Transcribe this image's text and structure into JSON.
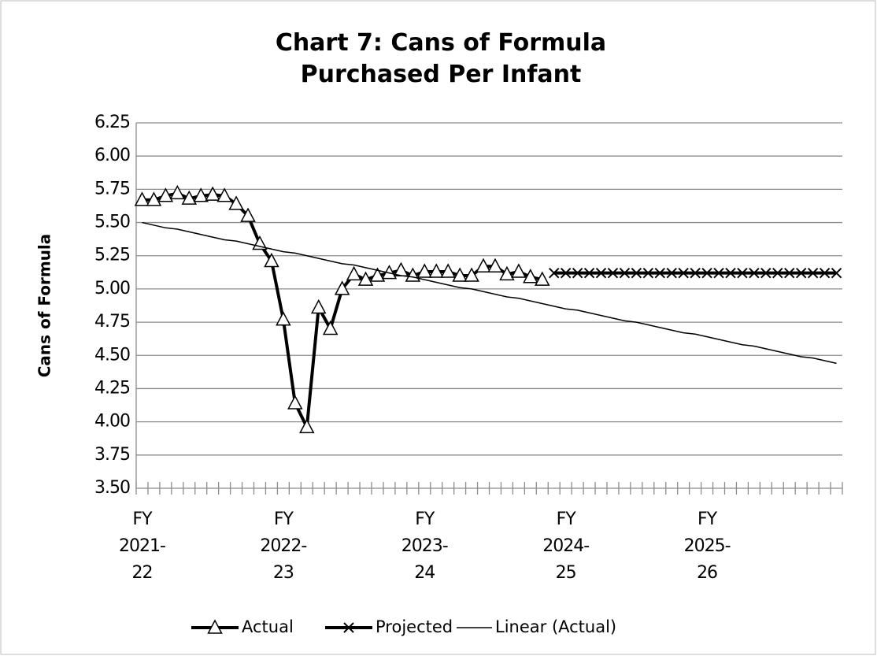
{
  "chart_data": {
    "type": "line",
    "title": "Chart 7: Cans of Formula Purchased Per Infant",
    "y_label": "Cans of Formula",
    "categories": [
      "FY 2021-22",
      null,
      null,
      null,
      null,
      null,
      null,
      null,
      null,
      null,
      null,
      null,
      "FY 2022-23",
      null,
      null,
      null,
      null,
      null,
      null,
      null,
      null,
      null,
      null,
      null,
      "FY 2023-24",
      null,
      null,
      null,
      null,
      null,
      null,
      null,
      null,
      null,
      null,
      null,
      "FY 2024-25",
      null,
      null,
      null,
      null,
      null,
      null,
      null,
      null,
      null,
      null,
      null,
      "FY 2025-26",
      null,
      null,
      null,
      null,
      null,
      null,
      null,
      null,
      null,
      null,
      null
    ],
    "series": [
      {
        "name": "Actual",
        "color": "#000000",
        "marker": "triangle",
        "line_width": 4,
        "values": [
          5.67,
          5.67,
          5.7,
          5.72,
          5.68,
          5.7,
          5.71,
          5.7,
          5.64,
          5.55,
          5.34,
          5.21,
          4.77,
          4.14,
          3.96,
          4.86,
          4.7,
          5.0,
          5.11,
          5.07,
          5.1,
          5.12,
          5.14,
          5.1,
          5.13,
          5.13,
          5.13,
          5.1,
          5.1,
          5.17,
          5.17,
          5.11,
          5.13,
          5.09,
          5.07,
          null,
          null,
          null,
          null,
          null,
          null,
          null,
          null,
          null,
          null,
          null,
          null,
          null,
          null,
          null,
          null,
          null,
          null,
          null,
          null,
          null,
          null,
          null,
          null,
          null
        ]
      },
      {
        "name": "Projected",
        "color": "#000000",
        "marker": "x",
        "line_width": 4,
        "values": [
          null,
          null,
          null,
          null,
          null,
          null,
          null,
          null,
          null,
          null,
          null,
          null,
          null,
          null,
          null,
          null,
          null,
          null,
          null,
          null,
          null,
          null,
          null,
          null,
          null,
          null,
          null,
          null,
          null,
          null,
          null,
          null,
          null,
          null,
          null,
          5.12,
          5.12,
          5.12,
          5.12,
          5.12,
          5.12,
          5.12,
          5.12,
          5.12,
          5.12,
          5.12,
          5.12,
          5.12,
          5.12,
          5.12,
          5.12,
          5.12,
          5.12,
          5.12,
          5.12,
          5.12,
          5.12,
          5.12,
          5.12,
          5.12
        ]
      },
      {
        "name": "Linear (Actual)",
        "color": "#000000",
        "marker": "none",
        "line_width": 1.5,
        "values": [
          5.5,
          5.48,
          5.46,
          5.45,
          5.43,
          5.41,
          5.39,
          5.37,
          5.36,
          5.34,
          5.32,
          5.3,
          5.28,
          5.27,
          5.25,
          5.23,
          5.21,
          5.19,
          5.18,
          5.16,
          5.14,
          5.12,
          5.1,
          5.09,
          5.07,
          5.05,
          5.03,
          5.01,
          5.0,
          4.98,
          4.96,
          4.94,
          4.93,
          4.91,
          4.89,
          4.87,
          4.85,
          4.84,
          4.82,
          4.8,
          4.78,
          4.76,
          4.75,
          4.73,
          4.71,
          4.69,
          4.67,
          4.66,
          4.64,
          4.62,
          4.6,
          4.58,
          4.57,
          4.55,
          4.53,
          4.51,
          4.49,
          4.48,
          4.46,
          4.44
        ]
      }
    ],
    "ylim": [
      3.5,
      6.25
    ],
    "yticks": [
      {
        "value": 3.5,
        "label": "3.50"
      },
      {
        "value": 3.75,
        "label": "3.75"
      },
      {
        "value": 4,
        "label": "4.00"
      },
      {
        "value": 4.25,
        "label": "4.25"
      },
      {
        "value": 4.5,
        "label": "4.50"
      },
      {
        "value": 4.75,
        "label": "4.75"
      },
      {
        "value": 5,
        "label": "5.00"
      },
      {
        "value": 5.25,
        "label": "5.25"
      },
      {
        "value": 5.5,
        "label": "5.50"
      },
      {
        "value": 5.75,
        "label": "5.75"
      },
      {
        "value": 6,
        "label": "6.00"
      },
      {
        "value": 6.25,
        "label": "6.25"
      }
    ],
    "grid": true,
    "legend": "bottom"
  }
}
